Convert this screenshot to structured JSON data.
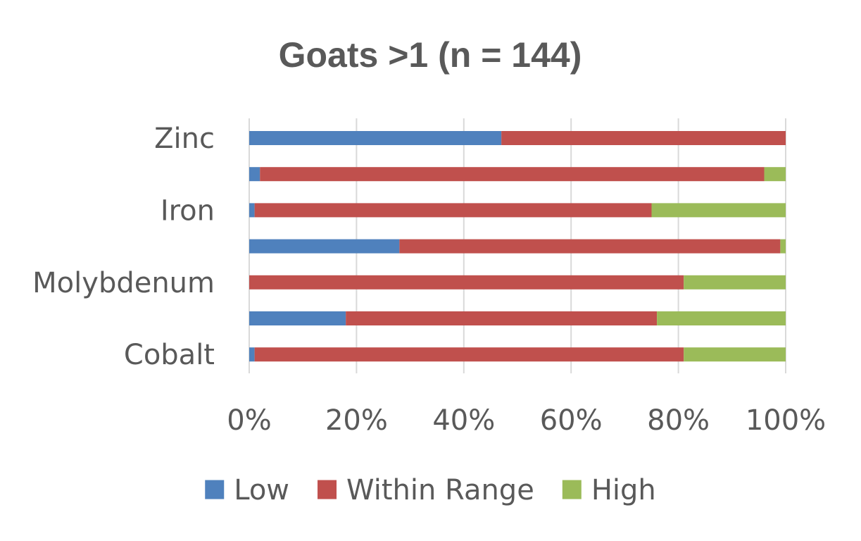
{
  "chart_data": {
    "type": "bar",
    "orientation": "horizontal",
    "stacked": "percent",
    "title": "Goats >1 (n = 144)",
    "categories": [
      "Zinc",
      "",
      "Iron",
      "",
      "Molybdenum",
      "",
      "Cobalt"
    ],
    "series": [
      {
        "name": "Low",
        "color": "#4f81bd",
        "values": [
          47,
          2,
          1,
          28,
          0,
          18,
          1
        ]
      },
      {
        "name": "Within Range",
        "color": "#c0504d",
        "values": [
          53,
          94,
          74,
          71,
          81,
          58,
          80
        ]
      },
      {
        "name": "High",
        "color": "#9bbb59",
        "values": [
          0,
          4,
          25,
          1,
          19,
          24,
          19
        ]
      }
    ],
    "xlim": [
      0,
      100
    ],
    "x_ticks": [
      "0%",
      "20%",
      "40%",
      "60%",
      "80%",
      "100%"
    ],
    "xlabel": "",
    "ylabel": "",
    "grid": "vertical",
    "legend_position": "bottom"
  }
}
